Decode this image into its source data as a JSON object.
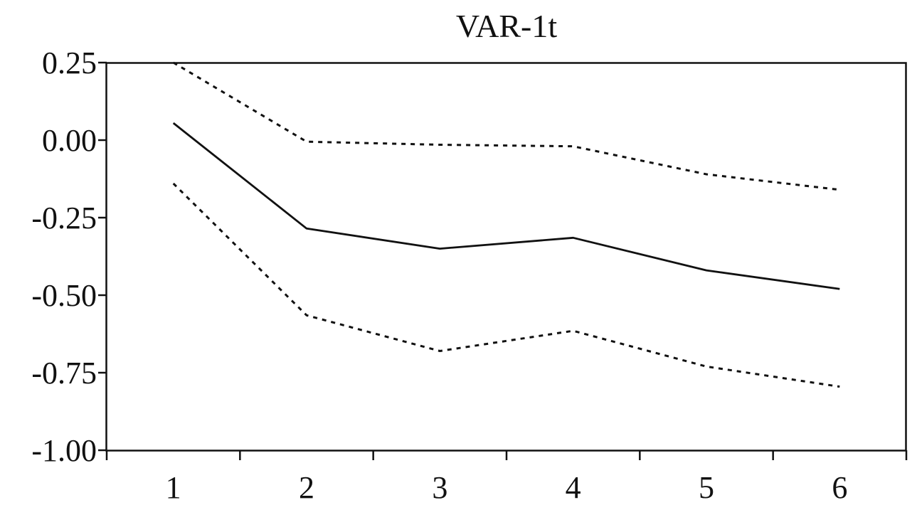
{
  "chart_data": {
    "type": "line",
    "title": "VAR-1t",
    "xlabel": "",
    "ylabel": "",
    "x": [
      1,
      2,
      3,
      4,
      5,
      6
    ],
    "x_tick_labels": [
      "1",
      "2",
      "3",
      "4",
      "5",
      "6"
    ],
    "xlim": [
      0.5,
      6.5
    ],
    "ylim": [
      -1.0,
      0.25
    ],
    "y_ticks": [
      0.25,
      0.0,
      -0.25,
      -0.5,
      -0.75,
      -1.0
    ],
    "y_tick_labels": [
      "0.25",
      "0.00",
      "-0.25",
      "-0.50",
      "-0.75",
      "-1.00"
    ],
    "grid": false,
    "series": [
      {
        "style": "solid",
        "color": "#111111",
        "values": [
          0.055,
          -0.285,
          -0.35,
          -0.315,
          -0.42,
          -0.48
        ]
      },
      {
        "style": "dotted",
        "color": "#111111",
        "values": [
          0.25,
          -0.005,
          -0.015,
          -0.02,
          -0.11,
          -0.16
        ]
      },
      {
        "style": "dotted",
        "color": "#111111",
        "values": [
          -0.14,
          -0.565,
          -0.68,
          -0.615,
          -0.73,
          -0.795
        ]
      }
    ]
  }
}
